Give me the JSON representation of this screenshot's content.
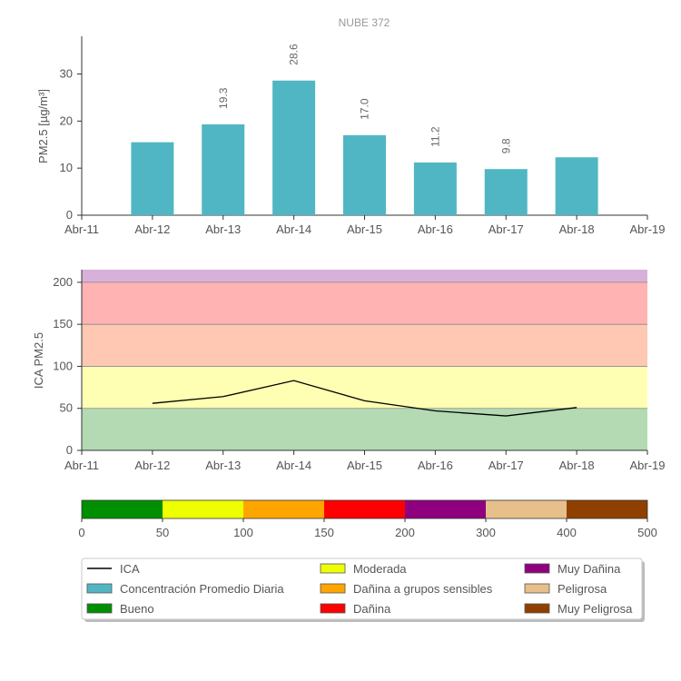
{
  "chart_data": [
    {
      "type": "bar",
      "title": "NUBE 372",
      "xlabel": "",
      "ylabel": "PM2.5 [µg/m³]",
      "x_ticks": [
        "Abr-11",
        "Abr-12",
        "Abr-13",
        "Abr-14",
        "Abr-15",
        "Abr-16",
        "Abr-17",
        "Abr-18",
        "Abr-19"
      ],
      "categories": [
        "Abr-12",
        "Abr-13",
        "Abr-14",
        "Abr-15",
        "Abr-16",
        "Abr-17",
        "Abr-18"
      ],
      "values": [
        15.5,
        19.3,
        28.6,
        17.0,
        11.2,
        9.8,
        12.3
      ],
      "value_labels": [
        "",
        "19.3",
        "28.6",
        "17.0",
        "11.2",
        "9.8",
        ""
      ],
      "ylim": [
        0,
        38
      ],
      "y_ticks": [
        "0",
        "10",
        "20",
        "30"
      ],
      "bar_color": "#51B6C4",
      "grid": false
    },
    {
      "type": "line",
      "xlabel": "",
      "ylabel": "ICA PM2.5",
      "x_ticks": [
        "Abr-11",
        "Abr-12",
        "Abr-13",
        "Abr-14",
        "Abr-15",
        "Abr-16",
        "Abr-17",
        "Abr-18",
        "Abr-19"
      ],
      "x": [
        "Abr-12",
        "Abr-13",
        "Abr-14",
        "Abr-15",
        "Abr-16",
        "Abr-17",
        "Abr-18"
      ],
      "y": [
        56,
        64,
        83,
        59,
        47,
        41,
        51
      ],
      "ylim": [
        0,
        215
      ],
      "y_ticks": [
        "0",
        "50",
        "100",
        "150",
        "200"
      ],
      "line_color": "#000000",
      "bands": [
        {
          "from": 0,
          "to": 50,
          "color": "#B3DAB3"
        },
        {
          "from": 50,
          "to": 100,
          "color": "#FFFFB3"
        },
        {
          "from": 100,
          "to": 150,
          "color": "#FFC8B3"
        },
        {
          "from": 150,
          "to": 200,
          "color": "#FFB3B3"
        },
        {
          "from": 200,
          "to": 215,
          "color": "#D9B0D9"
        }
      ]
    },
    {
      "type": "bar",
      "subtype": "color-scale",
      "segments": [
        {
          "from": 0,
          "to": 50,
          "color": "#008F00"
        },
        {
          "from": 50,
          "to": 100,
          "color": "#EEFF00"
        },
        {
          "from": 100,
          "to": 150,
          "color": "#FFA500"
        },
        {
          "from": 150,
          "to": 200,
          "color": "#FF0000"
        },
        {
          "from": 200,
          "to": 300,
          "color": "#8F007F"
        },
        {
          "from": 300,
          "to": 400,
          "color": "#E6BF8A"
        },
        {
          "from": 400,
          "to": 500,
          "color": "#8F4000"
        }
      ],
      "ticks": [
        "0",
        "50",
        "100",
        "150",
        "200",
        "300",
        "400",
        "500"
      ]
    }
  ],
  "legend": {
    "placement": "bottom",
    "columns": [
      [
        {
          "label": "ICA",
          "kind": "line",
          "color": "#000000"
        },
        {
          "label": "Concentración Promedio Diaria",
          "kind": "box",
          "color": "#51B6C4"
        },
        {
          "label": "Bueno",
          "kind": "box",
          "color": "#008F00"
        }
      ],
      [
        {
          "label": "Moderada",
          "kind": "box",
          "color": "#EEFF00"
        },
        {
          "label": "Dañina a grupos sensibles",
          "kind": "box",
          "color": "#FFA500"
        },
        {
          "label": "Dañina",
          "kind": "box",
          "color": "#FF0000"
        }
      ],
      [
        {
          "label": "Muy Dañina",
          "kind": "box",
          "color": "#8F007F"
        },
        {
          "label": "Peligrosa",
          "kind": "box",
          "color": "#E6BF8A"
        },
        {
          "label": "Muy Peligrosa",
          "kind": "box",
          "color": "#8F4000"
        }
      ]
    ]
  }
}
